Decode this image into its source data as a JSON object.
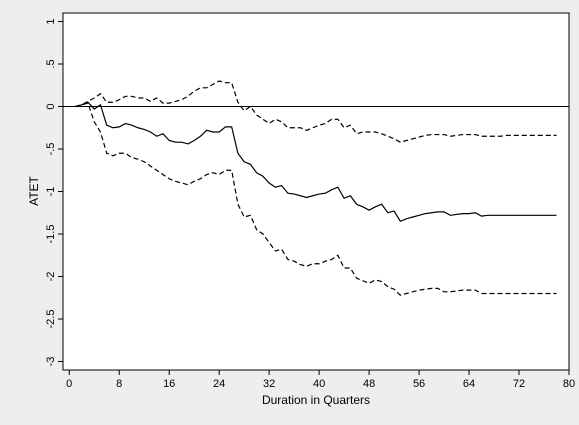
{
  "chart_data": {
    "type": "line",
    "title": "",
    "xlabel": "Duration in Quarters",
    "ylabel": "ATET",
    "xlim": [
      -1,
      80
    ],
    "ylim": [
      -3.1,
      1.1
    ],
    "xticks": [
      0,
      8,
      16,
      24,
      32,
      40,
      48,
      56,
      64,
      72,
      80
    ],
    "xtick_labels": [
      "0",
      "8",
      "16",
      "24",
      "32",
      "40",
      "48",
      "56",
      "64",
      "72",
      "80"
    ],
    "yticks": [
      1,
      0.5,
      0,
      -0.5,
      -1,
      -1.5,
      -2,
      -2.5,
      -3
    ],
    "ytick_labels": [
      "1",
      ".5",
      "0",
      "-.5",
      "-1",
      "-1.5",
      "-2",
      "-2.5",
      "-3"
    ],
    "reference_line": 0,
    "grid": false,
    "legend": "none",
    "series": [
      {
        "style": "solid",
        "x": [
          1,
          2,
          3,
          4,
          5,
          6,
          7,
          8,
          9,
          10,
          11,
          12,
          13,
          14,
          15,
          16,
          17,
          18,
          19,
          20,
          21,
          22,
          23,
          24,
          25,
          26,
          27,
          28,
          29,
          30,
          31,
          32,
          33,
          34,
          35,
          36,
          37,
          38,
          39,
          40,
          41,
          42,
          43,
          44,
          45,
          46,
          47,
          48,
          49,
          50,
          51,
          52,
          53,
          54,
          55,
          56,
          57,
          58,
          59,
          60,
          61,
          62,
          63,
          64,
          65,
          66,
          67,
          68,
          69,
          70,
          71,
          72,
          73,
          74,
          75,
          76,
          77,
          78
        ],
        "y": [
          0,
          0.02,
          0.05,
          -0.03,
          0.02,
          -0.22,
          -0.25,
          -0.24,
          -0.2,
          -0.22,
          -0.25,
          -0.27,
          -0.3,
          -0.35,
          -0.32,
          -0.4,
          -0.42,
          -0.42,
          -0.44,
          -0.4,
          -0.35,
          -0.28,
          -0.3,
          -0.3,
          -0.24,
          -0.24,
          -0.55,
          -0.65,
          -0.68,
          -0.78,
          -0.82,
          -0.9,
          -0.95,
          -0.93,
          -1.02,
          -1.03,
          -1.05,
          -1.07,
          -1.05,
          -1.03,
          -1.02,
          -0.98,
          -0.95,
          -1.08,
          -1.05,
          -1.15,
          -1.18,
          -1.22,
          -1.18,
          -1.15,
          -1.25,
          -1.23,
          -1.35,
          -1.32,
          -1.3,
          -1.28,
          -1.26,
          -1.25,
          -1.24,
          -1.24,
          -1.28,
          -1.27,
          -1.26,
          -1.26,
          -1.25,
          -1.29,
          -1.28,
          -1.28,
          -1.28,
          -1.28,
          -1.28,
          -1.28,
          -1.28,
          -1.28,
          -1.28,
          -1.28,
          -1.28,
          -1.28
        ]
      },
      {
        "style": "dashed",
        "x": [
          1,
          2,
          3,
          4,
          5,
          6,
          7,
          8,
          9,
          10,
          11,
          12,
          13,
          14,
          15,
          16,
          17,
          18,
          19,
          20,
          21,
          22,
          23,
          24,
          25,
          26,
          27,
          28,
          29,
          30,
          31,
          32,
          33,
          34,
          35,
          36,
          37,
          38,
          39,
          40,
          41,
          42,
          43,
          44,
          45,
          46,
          47,
          48,
          49,
          50,
          51,
          52,
          53,
          54,
          55,
          56,
          57,
          58,
          59,
          60,
          61,
          62,
          63,
          64,
          65,
          66,
          67,
          68,
          69,
          70,
          71,
          72,
          73,
          74,
          75,
          76,
          77,
          78
        ],
        "y": [
          0,
          0.02,
          0.06,
          0.1,
          0.15,
          0.05,
          0.05,
          0.08,
          0.12,
          0.12,
          0.1,
          0.1,
          0.06,
          0.1,
          0.04,
          0.04,
          0.06,
          0.08,
          0.12,
          0.18,
          0.22,
          0.22,
          0.26,
          0.3,
          0.28,
          0.28,
          0.05,
          -0.05,
          0,
          -0.1,
          -0.15,
          -0.2,
          -0.15,
          -0.18,
          -0.25,
          -0.25,
          -0.25,
          -0.28,
          -0.25,
          -0.22,
          -0.2,
          -0.15,
          -0.15,
          -0.25,
          -0.22,
          -0.32,
          -0.3,
          -0.3,
          -0.3,
          -0.32,
          -0.35,
          -0.38,
          -0.42,
          -0.4,
          -0.38,
          -0.36,
          -0.34,
          -0.33,
          -0.33,
          -0.33,
          -0.35,
          -0.34,
          -0.33,
          -0.33,
          -0.33,
          -0.35,
          -0.35,
          -0.35,
          -0.35,
          -0.34,
          -0.34,
          -0.34,
          -0.34,
          -0.34,
          -0.34,
          -0.34,
          -0.34,
          -0.34
        ]
      },
      {
        "style": "dashed",
        "x": [
          1,
          2,
          3,
          4,
          5,
          6,
          7,
          8,
          9,
          10,
          11,
          12,
          13,
          14,
          15,
          16,
          17,
          18,
          19,
          20,
          21,
          22,
          23,
          24,
          25,
          26,
          27,
          28,
          29,
          30,
          31,
          32,
          33,
          34,
          35,
          36,
          37,
          38,
          39,
          40,
          41,
          42,
          43,
          44,
          45,
          46,
          47,
          48,
          49,
          50,
          51,
          52,
          53,
          54,
          55,
          56,
          57,
          58,
          59,
          60,
          61,
          62,
          63,
          64,
          65,
          66,
          67,
          68,
          69,
          70,
          71,
          72,
          73,
          74,
          75,
          76,
          77,
          78
        ],
        "y": [
          0,
          0.02,
          0.04,
          -0.18,
          -0.3,
          -0.55,
          -0.58,
          -0.55,
          -0.55,
          -0.6,
          -0.62,
          -0.65,
          -0.7,
          -0.75,
          -0.8,
          -0.85,
          -0.88,
          -0.9,
          -0.92,
          -0.88,
          -0.85,
          -0.8,
          -0.78,
          -0.8,
          -0.75,
          -0.75,
          -1.15,
          -1.3,
          -1.28,
          -1.45,
          -1.5,
          -1.6,
          -1.7,
          -1.68,
          -1.8,
          -1.82,
          -1.86,
          -1.88,
          -1.85,
          -1.85,
          -1.82,
          -1.8,
          -1.75,
          -1.9,
          -1.9,
          -2.02,
          -2.05,
          -2.08,
          -2.04,
          -2.06,
          -2.12,
          -2.15,
          -2.22,
          -2.2,
          -2.18,
          -2.16,
          -2.15,
          -2.14,
          -2.14,
          -2.18,
          -2.18,
          -2.17,
          -2.16,
          -2.16,
          -2.16,
          -2.2,
          -2.2,
          -2.2,
          -2.2,
          -2.2,
          -2.2,
          -2.2,
          -2.2,
          -2.2,
          -2.2,
          -2.2,
          -2.2,
          -2.2
        ]
      }
    ]
  }
}
